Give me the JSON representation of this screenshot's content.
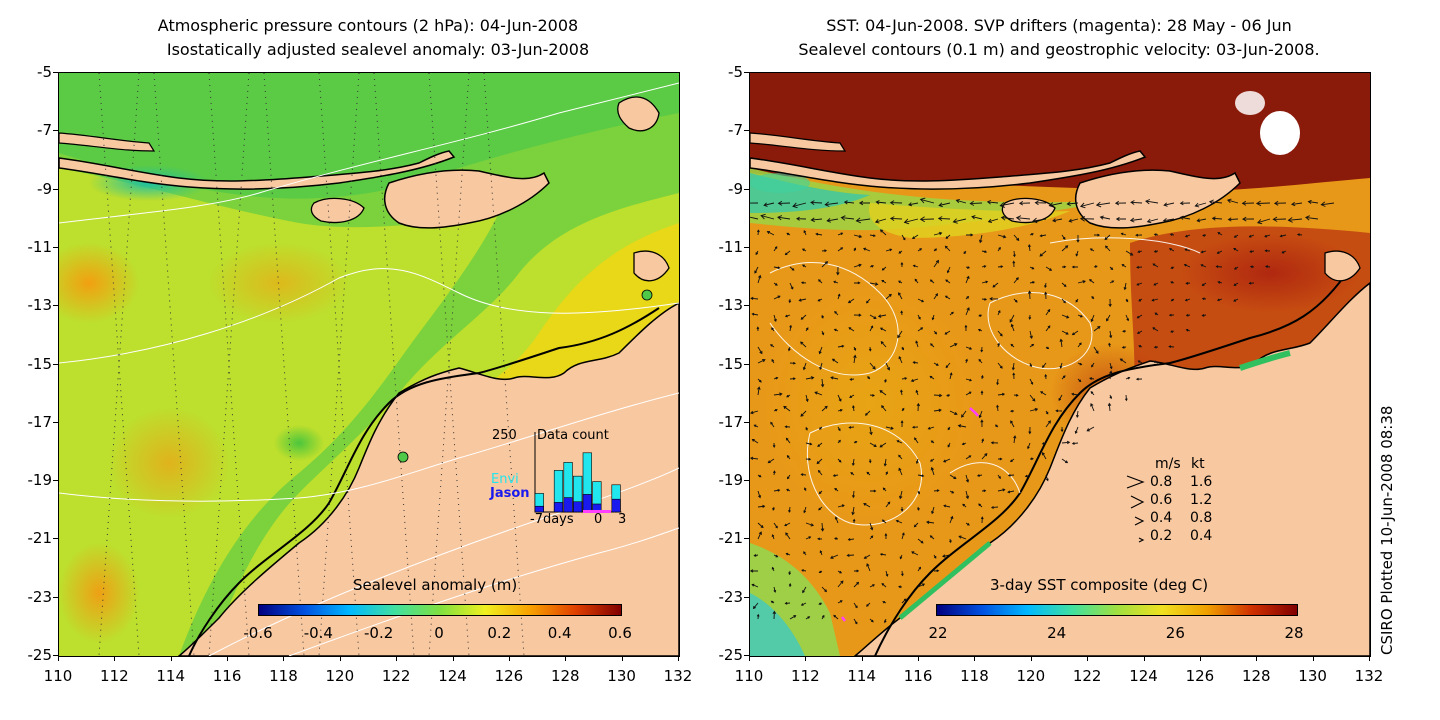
{
  "left_panel": {
    "title_line1": "Atmospheric pressure contours (2 hPa): 04-Jun-2008",
    "title_line2": "Isostatically adjusted sealevel anomaly: 03-Jun-2008",
    "colorbar_title": "Sealevel anomaly (m)",
    "colorbar_ticks": [
      "-0.6",
      "-0.4",
      "-0.2",
      "0",
      "0.2",
      "0.4",
      "0.6"
    ],
    "inset": {
      "count_max": "250",
      "title": "Data count",
      "envi_label": "Envi",
      "jason_label": "Jason",
      "x_left": "-7days",
      "x_zero": "0",
      "x_right": "3",
      "envi_color": "#22e6ee",
      "jason_color": "#1a1aee",
      "bins": [
        {
          "envi": 40,
          "jason": 18
        },
        {
          "envi": 0,
          "jason": 0
        },
        {
          "envi": 100,
          "jason": 30
        },
        {
          "envi": 110,
          "jason": 45
        },
        {
          "envi": 80,
          "jason": 32
        },
        {
          "envi": 130,
          "jason": 55
        },
        {
          "envi": 70,
          "jason": 25
        },
        {
          "envi": 0,
          "jason": 0
        },
        {
          "envi": 45,
          "jason": 40
        }
      ]
    }
  },
  "right_panel": {
    "title_line1": "SST: 04-Jun-2008. SVP drifters (magenta): 28 May - 06 Jun",
    "title_line2": "Sealevel contours (0.1 m) and geostrophic velocity: 03-Jun-2008.",
    "colorbar_title": "3-day SST composite (deg C)",
    "colorbar_ticks": [
      "22",
      "24",
      "26",
      "28"
    ],
    "velocity_legend": {
      "header_ms": "m/s",
      "header_kt": "kt",
      "rows": [
        {
          "ms": "0.8",
          "kt": "1.6"
        },
        {
          "ms": "0.6",
          "kt": "1.2"
        },
        {
          "ms": "0.4",
          "kt": "0.8"
        },
        {
          "ms": "0.2",
          "kt": "0.4"
        }
      ]
    }
  },
  "axes": {
    "y_ticks": [
      "-5",
      "-7",
      "-9",
      "-11",
      "-13",
      "-15",
      "-17",
      "-19",
      "-21",
      "-23",
      "-25"
    ],
    "x_ticks": [
      "110",
      "112",
      "114",
      "116",
      "118",
      "120",
      "122",
      "124",
      "126",
      "128",
      "130",
      "132"
    ]
  },
  "credit": "CSIRO Plotted 10-Jun-2008 08:38",
  "colors": {
    "land": "#f8c8a0",
    "ssh_scale": [
      "#000080",
      "#0050e0",
      "#00b8ff",
      "#40e0a0",
      "#80e040",
      "#f0f020",
      "#f8a000",
      "#e04000",
      "#800000"
    ],
    "sst_scale": [
      "#000080",
      "#0050e0",
      "#00b8ff",
      "#40e0a0",
      "#a0e040",
      "#f0e020",
      "#f0a000",
      "#d03000",
      "#800000"
    ],
    "drifter": "#ff40ff"
  }
}
